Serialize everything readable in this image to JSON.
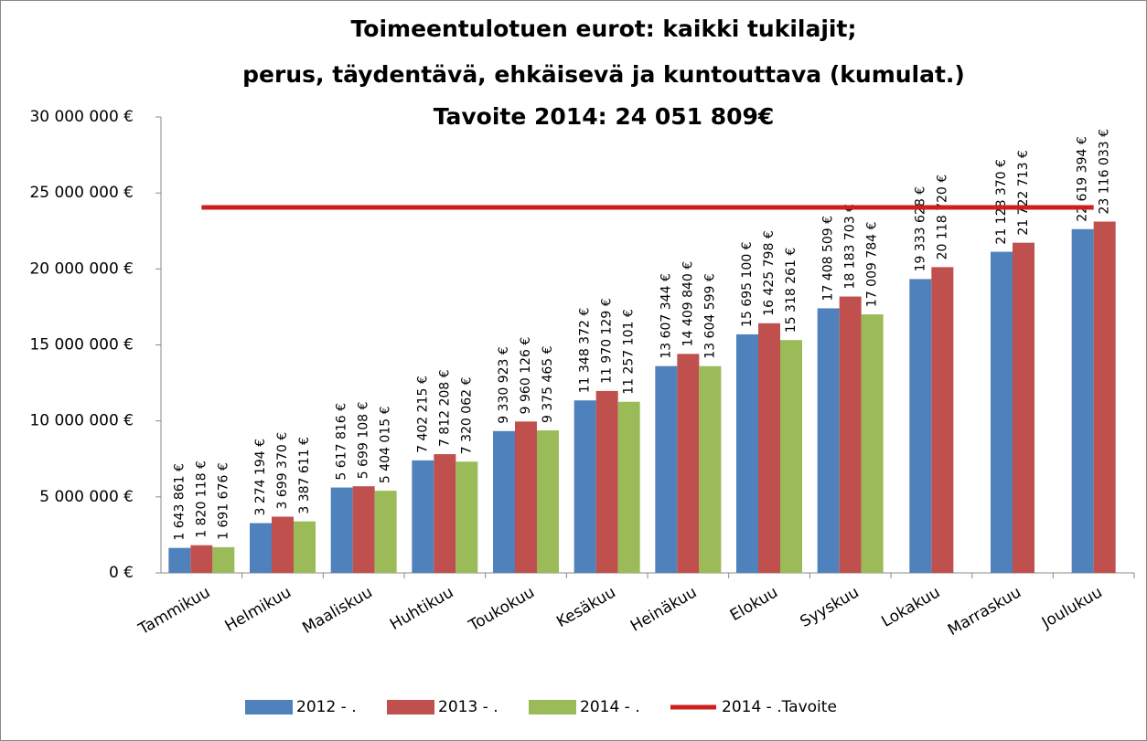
{
  "chart_data": {
    "type": "bar",
    "title": [
      "Toimeentulotuen eurot: kaikki tukilajit;",
      "perus, täydentävä, ehkäisevä ja kuntouttava (kumulat.)",
      "Tavoite 2014: 24 051 809€"
    ],
    "categories": [
      "Tammikuu",
      "Helmikuu",
      "Maaliskuu",
      "Huhtikuu",
      "Toukokuu",
      "Kesäkuu",
      "Heinäkuu",
      "Elokuu",
      "Syyskuu",
      "Lokakuu",
      "Marraskuu",
      "Joulukuu"
    ],
    "series": [
      {
        "name": "2012 - .",
        "color": "#4f81bd",
        "values": [
          1643861,
          3274194,
          5617816,
          7402215,
          9330923,
          11348372,
          13607344,
          15695100,
          17408509,
          19333628,
          21128370,
          22619394
        ],
        "value_labels": [
          "1 643 861 €",
          "3 274 194 €",
          "5 617 816 €",
          "7 402 215 €",
          "9 330 923 €",
          "11 348 372 €",
          "13 607 344 €",
          "15 695 100 €",
          "17 408 509 €",
          "19 333 628 €",
          "21 128 370 €",
          "22 619 394 €"
        ]
      },
      {
        "name": "2013 - .",
        "color": "#c0504d",
        "values": [
          1820118,
          3699370,
          5699108,
          7812208,
          9960126,
          11970129,
          14409840,
          16425798,
          18183703,
          20118720,
          21722713,
          23116033
        ],
        "value_labels": [
          "1 820 118 €",
          "3 699 370 €",
          "5 699 108 €",
          "7 812 208 €",
          "9 960 126 €",
          "11 970 129 €",
          "14 409 840 €",
          "16 425 798 €",
          "18 183 703 €",
          "20 118 720 €",
          "21 722 713 €",
          "23 116 033 €"
        ]
      },
      {
        "name": "2014 - .",
        "color": "#9bbb59",
        "values": [
          1691676,
          3387611,
          5404015,
          7320062,
          9375465,
          11257101,
          13604599,
          15318261,
          17009784,
          null,
          null,
          null
        ],
        "value_labels": [
          "1 691 676 €",
          "3 387 611 €",
          "5 404 015 €",
          "7 320 062 €",
          "9 375 465 €",
          "11 257 101 €",
          "13 604 599 €",
          "15 318 261 €",
          "17 009 784 €",
          null,
          null,
          null
        ]
      },
      {
        "name": "2014 - .Tavoite",
        "color": "#cc1f1f",
        "type": "line",
        "values": [
          24051809,
          24051809,
          24051809,
          24051809,
          24051809,
          24051809,
          24051809,
          24051809,
          24051809,
          24051809,
          24051809,
          24051809
        ]
      }
    ],
    "ylim": [
      0,
      30000000
    ],
    "yticks": [
      {
        "value": 0,
        "label": "0 €"
      },
      {
        "value": 5000000,
        "label": "5 000 000 €"
      },
      {
        "value": 10000000,
        "label": "10 000 000 €"
      },
      {
        "value": 15000000,
        "label": "15 000 000 €"
      },
      {
        "value": 20000000,
        "label": "20 000 000 €"
      },
      {
        "value": 25000000,
        "label": "25 000 000 €"
      },
      {
        "value": 30000000,
        "label": "30 000 000 €"
      }
    ],
    "legend": "bottom"
  }
}
